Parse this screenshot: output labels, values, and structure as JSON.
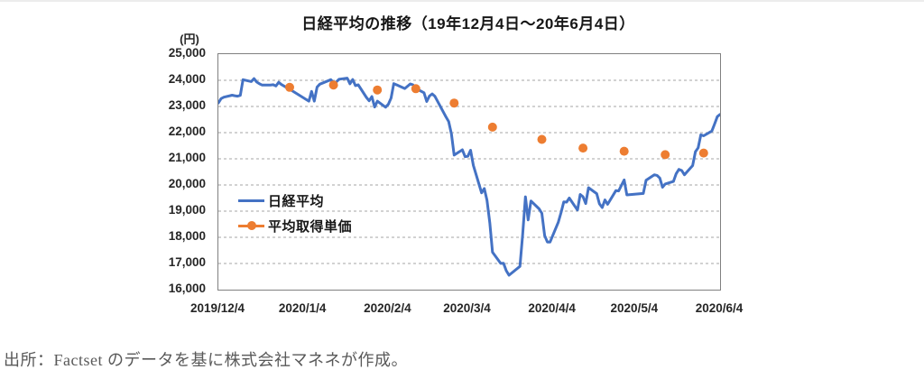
{
  "caption": {
    "text": "出所：Factset のデータを基に株式会社マネネが作成。"
  },
  "chart_data": {
    "type": "line",
    "title": "日経平均の推移（19年12月4日～20年6月4日）",
    "unit_label": "(円)",
    "grid": "horizontal-dashed",
    "legend_position": "inside-left",
    "colors": {
      "grid": "#A6A6A6",
      "axis_border": "#808080"
    },
    "x_axis": {
      "start": "2019/12/4",
      "end": "2020/6/4",
      "tick_labels": [
        "2019/12/4",
        "2020/1/4",
        "2020/2/4",
        "2020/3/4",
        "2020/4/4",
        "2020/5/4",
        "2020/6/4"
      ]
    },
    "y_axis": {
      "min": 16000,
      "max": 25000,
      "step": 1000,
      "tick_labels": [
        "25,000",
        "24,000",
        "23,000",
        "22,000",
        "21,000",
        "20,000",
        "19,000",
        "18,000",
        "17,000",
        "16,000"
      ]
    },
    "series": [
      {
        "name": "日経平均",
        "kind": "line",
        "color": "#4472C4",
        "points": [
          [
            "2019/12/4",
            23135
          ],
          [
            "2019/12/5",
            23300
          ],
          [
            "2019/12/6",
            23354
          ],
          [
            "2019/12/9",
            23431
          ],
          [
            "2019/12/10",
            23410
          ],
          [
            "2019/12/11",
            23392
          ],
          [
            "2019/12/12",
            23425
          ],
          [
            "2019/12/13",
            24023
          ],
          [
            "2019/12/16",
            23952
          ],
          [
            "2019/12/17",
            24066
          ],
          [
            "2019/12/18",
            23934
          ],
          [
            "2019/12/19",
            23865
          ],
          [
            "2019/12/20",
            23817
          ],
          [
            "2019/12/23",
            23821
          ],
          [
            "2019/12/24",
            23831
          ],
          [
            "2019/12/25",
            23783
          ],
          [
            "2019/12/26",
            23925
          ],
          [
            "2019/12/27",
            23838
          ],
          [
            "2019/12/30",
            23657
          ],
          [
            "2020/1/6",
            23205
          ],
          [
            "2020/1/7",
            23576
          ],
          [
            "2020/1/8",
            23205
          ],
          [
            "2020/1/9",
            23740
          ],
          [
            "2020/1/10",
            23851
          ],
          [
            "2020/1/14",
            24025
          ],
          [
            "2020/1/15",
            23917
          ],
          [
            "2020/1/16",
            23933
          ],
          [
            "2020/1/17",
            24041
          ],
          [
            "2020/1/20",
            24084
          ],
          [
            "2020/1/21",
            23865
          ],
          [
            "2020/1/22",
            24031
          ],
          [
            "2020/1/23",
            23795
          ],
          [
            "2020/1/24",
            23827
          ],
          [
            "2020/1/27",
            23344
          ],
          [
            "2020/1/28",
            23216
          ],
          [
            "2020/1/29",
            23379
          ],
          [
            "2020/1/30",
            22978
          ],
          [
            "2020/1/31",
            23205
          ],
          [
            "2020/2/3",
            22972
          ],
          [
            "2020/2/4",
            23085
          ],
          [
            "2020/2/5",
            23320
          ],
          [
            "2020/2/6",
            23874
          ],
          [
            "2020/2/7",
            23828
          ],
          [
            "2020/2/10",
            23686
          ],
          [
            "2020/2/12",
            23861
          ],
          [
            "2020/2/13",
            23828
          ],
          [
            "2020/2/14",
            23688
          ],
          [
            "2020/2/17",
            23523
          ],
          [
            "2020/2/18",
            23194
          ],
          [
            "2020/2/19",
            23401
          ],
          [
            "2020/2/20",
            23479
          ],
          [
            "2020/2/21",
            23387
          ],
          [
            "2020/2/25",
            22605
          ],
          [
            "2020/2/26",
            22426
          ],
          [
            "2020/2/27",
            21948
          ],
          [
            "2020/2/28",
            21143
          ],
          [
            "2020/3/2",
            21344
          ],
          [
            "2020/3/3",
            21083
          ],
          [
            "2020/3/4",
            21100
          ],
          [
            "2020/3/5",
            21329
          ],
          [
            "2020/3/6",
            20750
          ],
          [
            "2020/3/9",
            19699
          ],
          [
            "2020/3/10",
            19867
          ],
          [
            "2020/3/11",
            19416
          ],
          [
            "2020/3/12",
            18560
          ],
          [
            "2020/3/13",
            17431
          ],
          [
            "2020/3/16",
            17002
          ],
          [
            "2020/3/17",
            17012
          ],
          [
            "2020/3/18",
            16727
          ],
          [
            "2020/3/19",
            16553
          ],
          [
            "2020/3/23",
            16888
          ],
          [
            "2020/3/24",
            18092
          ],
          [
            "2020/3/25",
            19547
          ],
          [
            "2020/3/26",
            18665
          ],
          [
            "2020/3/27",
            19389
          ],
          [
            "2020/3/30",
            19085
          ],
          [
            "2020/3/31",
            18917
          ],
          [
            "2020/4/1",
            18065
          ],
          [
            "2020/4/2",
            17819
          ],
          [
            "2020/4/3",
            17820
          ],
          [
            "2020/4/6",
            18576
          ],
          [
            "2020/4/7",
            18950
          ],
          [
            "2020/4/8",
            19353
          ],
          [
            "2020/4/9",
            19346
          ],
          [
            "2020/4/10",
            19499
          ],
          [
            "2020/4/13",
            19043
          ],
          [
            "2020/4/14",
            19639
          ],
          [
            "2020/4/15",
            19550
          ],
          [
            "2020/4/16",
            19290
          ],
          [
            "2020/4/17",
            19897
          ],
          [
            "2020/4/20",
            19669
          ],
          [
            "2020/4/21",
            19281
          ],
          [
            "2020/4/22",
            19138
          ],
          [
            "2020/4/23",
            19429
          ],
          [
            "2020/4/24",
            19262
          ],
          [
            "2020/4/27",
            19783
          ],
          [
            "2020/4/28",
            19771
          ],
          [
            "2020/4/30",
            20194
          ],
          [
            "2020/5/1",
            19619
          ],
          [
            "2020/5/7",
            19675
          ],
          [
            "2020/5/8",
            20179
          ],
          [
            "2020/5/11",
            20391
          ],
          [
            "2020/5/12",
            20366
          ],
          [
            "2020/5/13",
            20267
          ],
          [
            "2020/5/14",
            19915
          ],
          [
            "2020/5/15",
            20037
          ],
          [
            "2020/5/18",
            20134
          ],
          [
            "2020/5/19",
            20433
          ],
          [
            "2020/5/20",
            20595
          ],
          [
            "2020/5/21",
            20552
          ],
          [
            "2020/5/22",
            20388
          ],
          [
            "2020/5/25",
            20742
          ],
          [
            "2020/5/26",
            21271
          ],
          [
            "2020/5/27",
            21419
          ],
          [
            "2020/5/28",
            21916
          ],
          [
            "2020/5/29",
            21878
          ],
          [
            "2020/6/1",
            22062
          ],
          [
            "2020/6/2",
            22326
          ],
          [
            "2020/6/3",
            22614
          ],
          [
            "2020/6/4",
            22696
          ]
        ]
      },
      {
        "name": "平均取得単価",
        "kind": "scatter",
        "color": "#ED7D31",
        "points": [
          [
            "2019/12/30",
            23730
          ],
          [
            "2020/1/15",
            23820
          ],
          [
            "2020/1/31",
            23630
          ],
          [
            "2020/2/14",
            23680
          ],
          [
            "2020/2/28",
            23130
          ],
          [
            "2020/3/13",
            22210
          ],
          [
            "2020/3/31",
            21740
          ],
          [
            "2020/4/15",
            21410
          ],
          [
            "2020/4/30",
            21290
          ],
          [
            "2020/5/15",
            21160
          ],
          [
            "2020/5/29",
            21220
          ]
        ]
      }
    ]
  }
}
